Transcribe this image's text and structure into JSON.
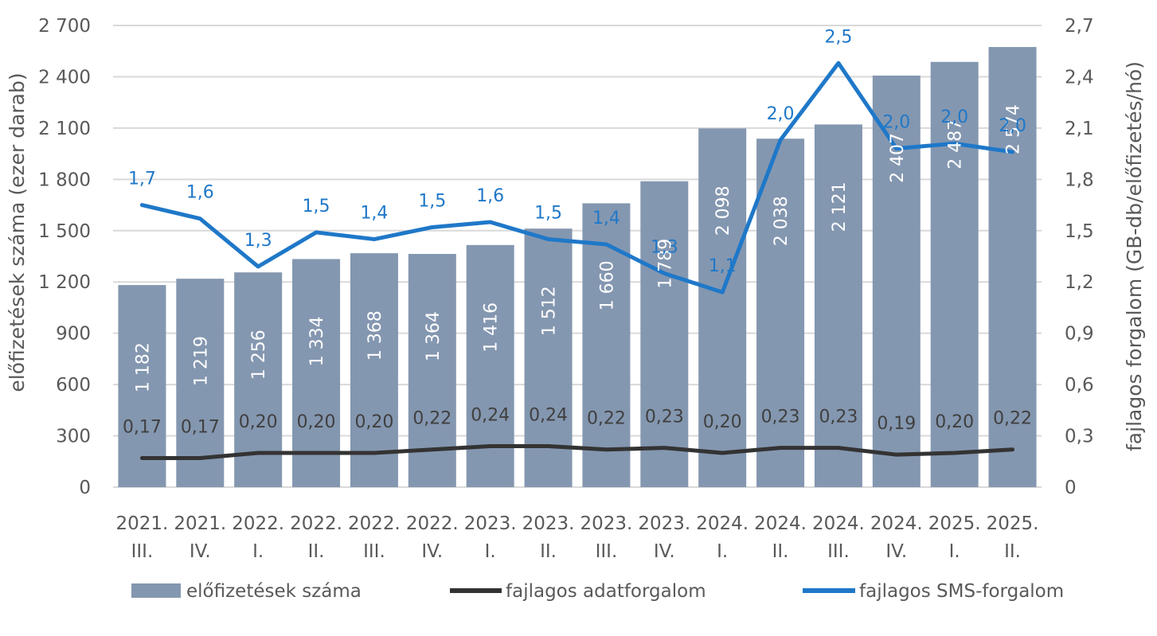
{
  "chart_data": {
    "type": "bar",
    "categories": [
      [
        "2021.",
        "III."
      ],
      [
        "2021.",
        "IV."
      ],
      [
        "2022.",
        "I."
      ],
      [
        "2022.",
        "II."
      ],
      [
        "2022.",
        "III."
      ],
      [
        "2022.",
        "IV."
      ],
      [
        "2023.",
        "I."
      ],
      [
        "2023.",
        "II."
      ],
      [
        "2023.",
        "III."
      ],
      [
        "2023.",
        "IV."
      ],
      [
        "2024.",
        "I."
      ],
      [
        "2024.",
        "II."
      ],
      [
        "2024.",
        "III."
      ],
      [
        "2024.",
        "IV."
      ],
      [
        "2025.",
        "I."
      ],
      [
        "2025.",
        "II."
      ]
    ],
    "left_axis": {
      "title": "előfizetések száma (ezer darab)",
      "min": 0,
      "max": 2700,
      "ticks": [
        0,
        300,
        600,
        900,
        1200,
        1500,
        1800,
        2100,
        2400,
        2700
      ],
      "tick_labels": [
        "0",
        "300",
        "600",
        "900",
        "1 200",
        "1 500",
        "1 800",
        "2 100",
        "2 400",
        "2 700"
      ]
    },
    "right_axis": {
      "title": "fajlagos forgalom (GB-db/előfizetés/hó)",
      "min": 0,
      "max": 2.7,
      "ticks": [
        0,
        0.3,
        0.6,
        0.9,
        1.2,
        1.5,
        1.8,
        2.1,
        2.4,
        2.7
      ],
      "tick_labels": [
        "0",
        "0,3",
        "0,6",
        "0,9",
        "1,2",
        "1,5",
        "1,8",
        "2,1",
        "2,4",
        "2,7"
      ]
    },
    "grid": true,
    "legend_position": "bottom",
    "series": [
      {
        "name": "előfizetések száma",
        "type": "bar",
        "axis": "left",
        "color": "#8497B0",
        "values": [
          1182,
          1219,
          1256,
          1334,
          1368,
          1364,
          1416,
          1512,
          1660,
          1789,
          2098,
          2038,
          2121,
          2407,
          2487,
          2574
        ],
        "labels": [
          "1 182",
          "1 219",
          "1 256",
          "1 334",
          "1 368",
          "1 364",
          "1 416",
          "1 512",
          "1 660",
          "1 789",
          "2 098",
          "2 038",
          "2 121",
          "2 407",
          "2 487",
          "2 574"
        ]
      },
      {
        "name": "fajlagos adatforgalom",
        "type": "line",
        "axis": "right",
        "color": "#333333",
        "values": [
          0.17,
          0.17,
          0.2,
          0.2,
          0.2,
          0.22,
          0.24,
          0.24,
          0.22,
          0.23,
          0.2,
          0.23,
          0.23,
          0.19,
          0.2,
          0.22
        ],
        "labels": [
          "0,17",
          "0,17",
          "0,20",
          "0,20",
          "0,20",
          "0,22",
          "0,24",
          "0,24",
          "0,22",
          "0,23",
          "0,20",
          "0,23",
          "0,23",
          "0,19",
          "0,20",
          "0,22"
        ]
      },
      {
        "name": "fajlagos SMS-forgalom",
        "type": "line",
        "axis": "right",
        "color": "#1F78C8",
        "values": [
          1.65,
          1.57,
          1.29,
          1.49,
          1.45,
          1.52,
          1.55,
          1.45,
          1.42,
          1.25,
          1.14,
          2.03,
          2.48,
          1.98,
          2.01,
          1.96
        ],
        "labels": [
          "1,7",
          "1,6",
          "1,3",
          "1,5",
          "1,4",
          "1,5",
          "1,6",
          "1,5",
          "1,4",
          "1,3",
          "1,1",
          "2,0",
          "2,5",
          "2,0",
          "2,0",
          "2,0"
        ]
      }
    ]
  }
}
